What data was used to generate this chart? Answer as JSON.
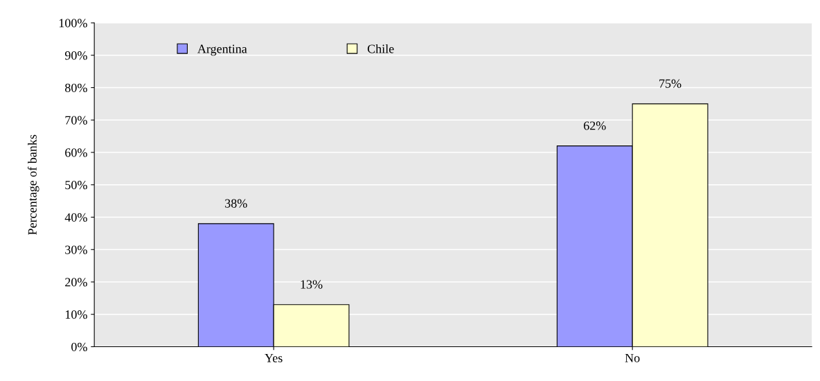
{
  "chart_data": {
    "type": "bar",
    "ylabel": "Percentage of banks",
    "categories": [
      "Yes",
      "No"
    ],
    "series": [
      {
        "name": "Argentina",
        "color": "#9999ff",
        "values": [
          38,
          62
        ],
        "value_labels": [
          "38%",
          "62%"
        ]
      },
      {
        "name": "Chile",
        "color": "#ffffcc",
        "values": [
          13,
          75
        ],
        "value_labels": [
          "13%",
          "75%"
        ]
      }
    ],
    "ylim": [
      0,
      100
    ],
    "yticks": [
      {
        "value": 0,
        "label": "0%"
      },
      {
        "value": 10,
        "label": "10%"
      },
      {
        "value": 20,
        "label": "20%"
      },
      {
        "value": 30,
        "label": "30%"
      },
      {
        "value": 40,
        "label": "40%"
      },
      {
        "value": 50,
        "label": "50%"
      },
      {
        "value": 60,
        "label": "60%"
      },
      {
        "value": 70,
        "label": "70%"
      },
      {
        "value": 80,
        "label": "80%"
      },
      {
        "value": 90,
        "label": "90%"
      },
      {
        "value": 100,
        "label": "100%"
      }
    ],
    "grid": "y",
    "legend": "top left"
  }
}
